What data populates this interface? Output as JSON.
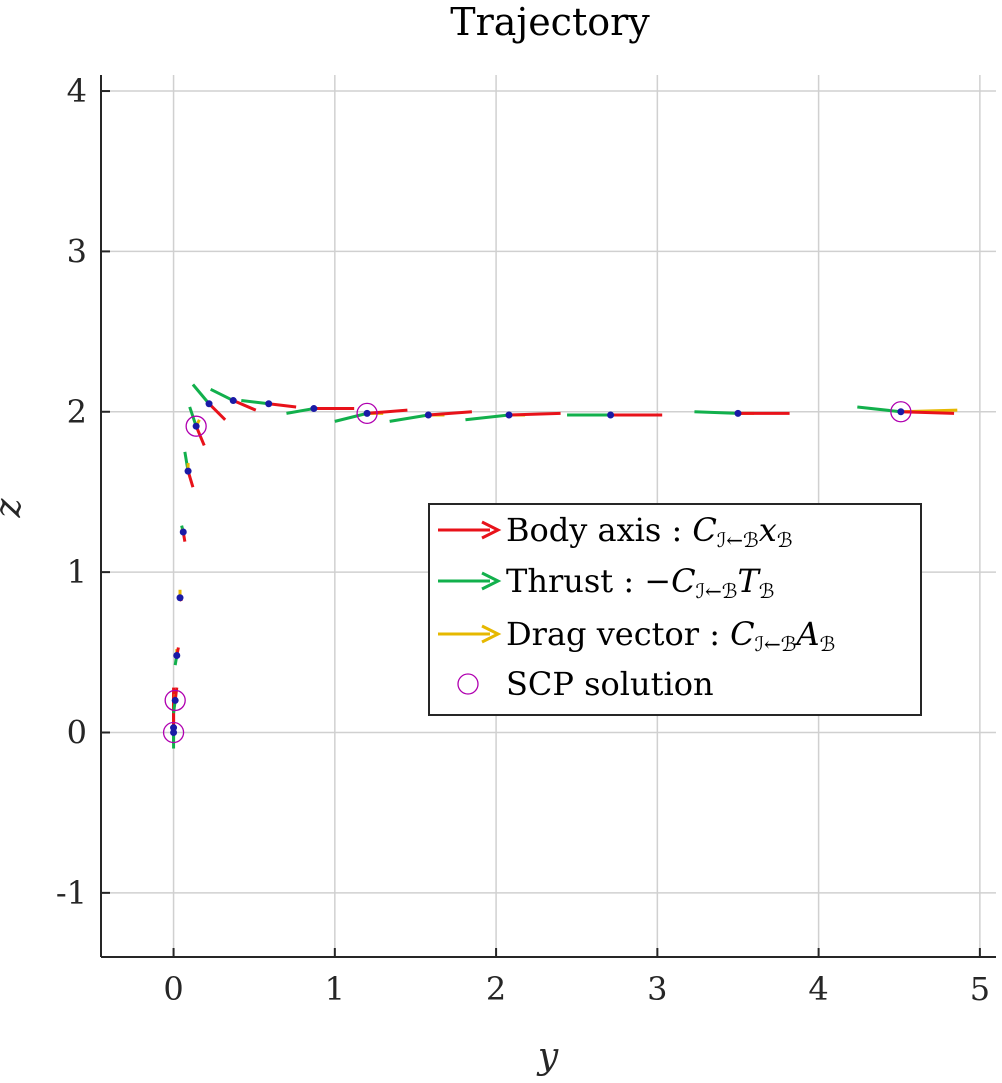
{
  "chart_data": {
    "type": "scatter",
    "title": "Trajectory",
    "xlabel": "y",
    "ylabel": "z",
    "xlim": [
      -0.45,
      5.1
    ],
    "ylim": [
      -1.4,
      4.1
    ],
    "x_ticks": [
      0,
      1,
      2,
      3,
      4,
      5
    ],
    "x_tick_labels": [
      "0",
      "1",
      "2",
      "3",
      "4",
      "5"
    ],
    "y_ticks": [
      -1,
      0,
      1,
      2,
      3,
      4
    ],
    "y_tick_labels": [
      "-1",
      "0",
      "1",
      "2",
      "3",
      "4"
    ],
    "grid": true,
    "legend_position": "right, middle",
    "colors": {
      "body_axis": "#e8121a",
      "thrust": "#12b04c",
      "drag": "#e6b800",
      "points": "#1a1aa6",
      "scp": "#b000b0",
      "grid": "#d0d0d0",
      "axis": "#262626"
    },
    "legend": [
      {
        "key": "body_axis",
        "label": "Body axis : ",
        "math": [
          [
            "C",
            ""
          ],
          [
            "ℐ←ℬ",
            "sub"
          ],
          [
            "x",
            ""
          ],
          [
            "ℬ",
            "sub"
          ]
        ]
      },
      {
        "key": "thrust",
        "label": "Thrust : ",
        "math": [
          [
            "−C",
            ""
          ],
          [
            "ℐ←ℬ",
            "sub"
          ],
          [
            "T",
            ""
          ],
          [
            "ℬ",
            "sub"
          ]
        ]
      },
      {
        "key": "drag",
        "label": "Drag vector : ",
        "math": [
          [
            "C",
            ""
          ],
          [
            "ℐ←ℬ",
            "sub"
          ],
          [
            "A",
            ""
          ],
          [
            "ℬ",
            "sub"
          ]
        ]
      },
      {
        "key": "scp",
        "label": "SCP solution",
        "math": []
      }
    ],
    "series": [
      {
        "name": "trajectory",
        "points": [
          {
            "y": 0.0,
            "z": 0.0,
            "body": [
              0.0,
              0.25
            ],
            "thrust": [
              0.0,
              -0.1
            ],
            "drag": [
              0.0,
              0.05
            ]
          },
          {
            "y": 0.0,
            "z": 0.03,
            "body": [
              0.0,
              0.25
            ],
            "thrust": [
              0.0,
              -0.1
            ],
            "drag": [
              0.0,
              0.05
            ]
          },
          {
            "y": 0.01,
            "z": 0.2,
            "body": [
              0.01,
              0.08
            ],
            "thrust": [
              -0.01,
              -0.08
            ],
            "drag": [
              0.0,
              0.04
            ]
          },
          {
            "y": 0.02,
            "z": 0.48,
            "body": [
              0.01,
              0.05
            ],
            "thrust": [
              -0.01,
              -0.06
            ],
            "drag": [
              0.0,
              0.04
            ]
          },
          {
            "y": 0.04,
            "z": 0.84,
            "body": [
              0.01,
              -0.02
            ],
            "thrust": [
              -0.01,
              0.0
            ],
            "drag": [
              0.0,
              0.05
            ]
          },
          {
            "y": 0.06,
            "z": 1.25,
            "body": [
              0.01,
              -0.06
            ],
            "thrust": [
              -0.01,
              0.04
            ],
            "drag": [
              -0.01,
              0.02
            ]
          },
          {
            "y": 0.09,
            "z": 1.63,
            "body": [
              0.03,
              -0.1
            ],
            "thrust": [
              -0.02,
              0.12
            ],
            "drag": [
              0.0,
              0.05
            ]
          },
          {
            "y": 0.14,
            "z": 1.91,
            "body": [
              0.05,
              -0.12
            ],
            "thrust": [
              -0.04,
              0.12
            ],
            "drag": [
              0.02,
              0.04
            ]
          },
          {
            "y": 0.22,
            "z": 2.05,
            "body": [
              0.1,
              -0.1
            ],
            "thrust": [
              -0.1,
              0.12
            ],
            "drag": [
              0.02,
              0.0
            ]
          },
          {
            "y": 0.37,
            "z": 2.07,
            "body": [
              0.14,
              -0.06
            ],
            "thrust": [
              -0.14,
              0.07
            ],
            "drag": [
              0.02,
              0.0
            ]
          },
          {
            "y": 0.59,
            "z": 2.05,
            "body": [
              0.17,
              -0.02
            ],
            "thrust": [
              -0.17,
              0.02
            ],
            "drag": [
              0.0,
              0.0
            ]
          },
          {
            "y": 0.87,
            "z": 2.02,
            "body": [
              0.25,
              0.0
            ],
            "thrust": [
              -0.17,
              -0.03
            ],
            "drag": [
              0.0,
              0.0
            ]
          },
          {
            "y": 1.2,
            "z": 1.99,
            "body": [
              0.25,
              0.02
            ],
            "thrust": [
              -0.2,
              -0.05
            ],
            "drag": [
              0.1,
              0.0
            ]
          },
          {
            "y": 1.58,
            "z": 1.98,
            "body": [
              0.27,
              0.02
            ],
            "thrust": [
              -0.24,
              -0.04
            ],
            "drag": [
              0.1,
              0.0
            ]
          },
          {
            "y": 2.08,
            "z": 1.98,
            "body": [
              0.32,
              0.01
            ],
            "thrust": [
              -0.27,
              -0.03
            ],
            "drag": [
              0.1,
              0.0
            ]
          },
          {
            "y": 2.71,
            "z": 1.98,
            "body": [
              0.32,
              0.0
            ],
            "thrust": [
              -0.27,
              0.0
            ],
            "drag": [
              0.1,
              0.0
            ]
          },
          {
            "y": 3.5,
            "z": 1.99,
            "body": [
              0.32,
              0.0
            ],
            "thrust": [
              -0.27,
              0.01
            ],
            "drag": [
              0.1,
              0.0
            ]
          },
          {
            "y": 4.51,
            "z": 2.0,
            "body": [
              0.33,
              -0.01
            ],
            "thrust": [
              -0.27,
              0.03
            ],
            "drag": [
              0.35,
              0.01
            ]
          }
        ]
      },
      {
        "name": "SCP solution",
        "points": [
          {
            "y": 0.0,
            "z": 0.0
          },
          {
            "y": 0.01,
            "z": 0.2
          },
          {
            "y": 0.14,
            "z": 1.91
          },
          {
            "y": 1.2,
            "z": 1.99
          },
          {
            "y": 4.51,
            "z": 2.0
          }
        ]
      }
    ]
  }
}
